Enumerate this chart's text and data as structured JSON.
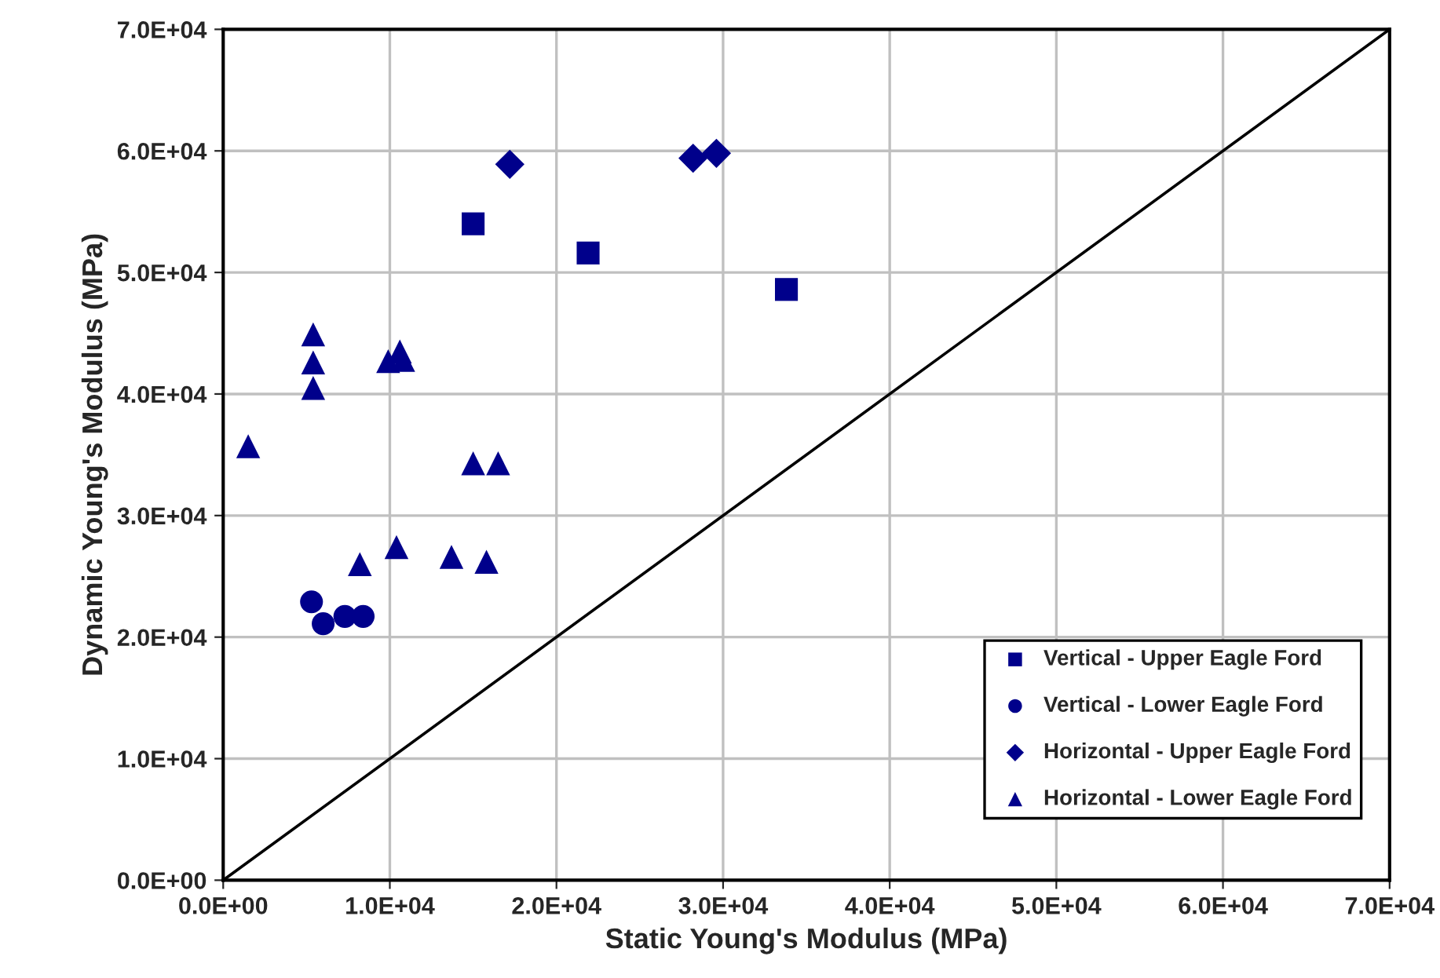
{
  "chart_data": {
    "type": "scatter",
    "xlabel": "Static Young's Modulus (MPa)",
    "ylabel": "Dynamic Young's Modulus (MPa)",
    "xlim": [
      0,
      70000
    ],
    "ylim": [
      0,
      70000
    ],
    "xticks": [
      {
        "value": 0,
        "label": "0.0E+00"
      },
      {
        "value": 10000,
        "label": "1.0E+04"
      },
      {
        "value": 20000,
        "label": "2.0E+04"
      },
      {
        "value": 30000,
        "label": "3.0E+04"
      },
      {
        "value": 40000,
        "label": "4.0E+04"
      },
      {
        "value": 50000,
        "label": "5.0E+04"
      },
      {
        "value": 60000,
        "label": "6.0E+04"
      },
      {
        "value": 70000,
        "label": "7.0E+04"
      }
    ],
    "yticks": [
      {
        "value": 0,
        "label": "0.0E+00"
      },
      {
        "value": 10000,
        "label": "1.0E+04"
      },
      {
        "value": 20000,
        "label": "2.0E+04"
      },
      {
        "value": 30000,
        "label": "3.0E+04"
      },
      {
        "value": 40000,
        "label": "4.0E+04"
      },
      {
        "value": 50000,
        "label": "5.0E+04"
      },
      {
        "value": 60000,
        "label": "6.0E+04"
      },
      {
        "value": 70000,
        "label": "7.0E+04"
      }
    ],
    "grid": true,
    "legend": "bottom right",
    "series": [
      {
        "name": "Vertical - Upper Eagle Ford",
        "color": "#00008b",
        "marker": "square",
        "x": [
          15000,
          21900,
          33800
        ],
        "values": [
          54000,
          51600,
          48600
        ]
      },
      {
        "name": "Vertical - Lower Eagle Ford",
        "color": "#00008b",
        "marker": "circle",
        "x": [
          5300,
          6000,
          7300,
          8400
        ],
        "values": [
          22900,
          21100,
          21700,
          21700
        ]
      },
      {
        "name": "Horizontal - Upper Eagle Ford",
        "color": "#00008b",
        "marker": "diamond",
        "x": [
          17200,
          28200,
          29600
        ],
        "values": [
          58900,
          59400,
          59800
        ]
      },
      {
        "name": "Horizontal - Lower Eagle Ford",
        "color": "#00008b",
        "marker": "triangle",
        "x": [
          1500,
          5400,
          5400,
          5400,
          9900,
          10600,
          10800,
          15000,
          16500,
          8200,
          10400,
          13700,
          15800
        ],
        "values": [
          35700,
          44900,
          42600,
          40500,
          42700,
          43500,
          42800,
          34300,
          34300,
          26000,
          27400,
          26600,
          26200
        ]
      },
      {
        "type": "line",
        "color": "#000000",
        "marker": "none",
        "x": [
          0,
          70000
        ],
        "values": [
          0,
          70000
        ]
      }
    ]
  }
}
